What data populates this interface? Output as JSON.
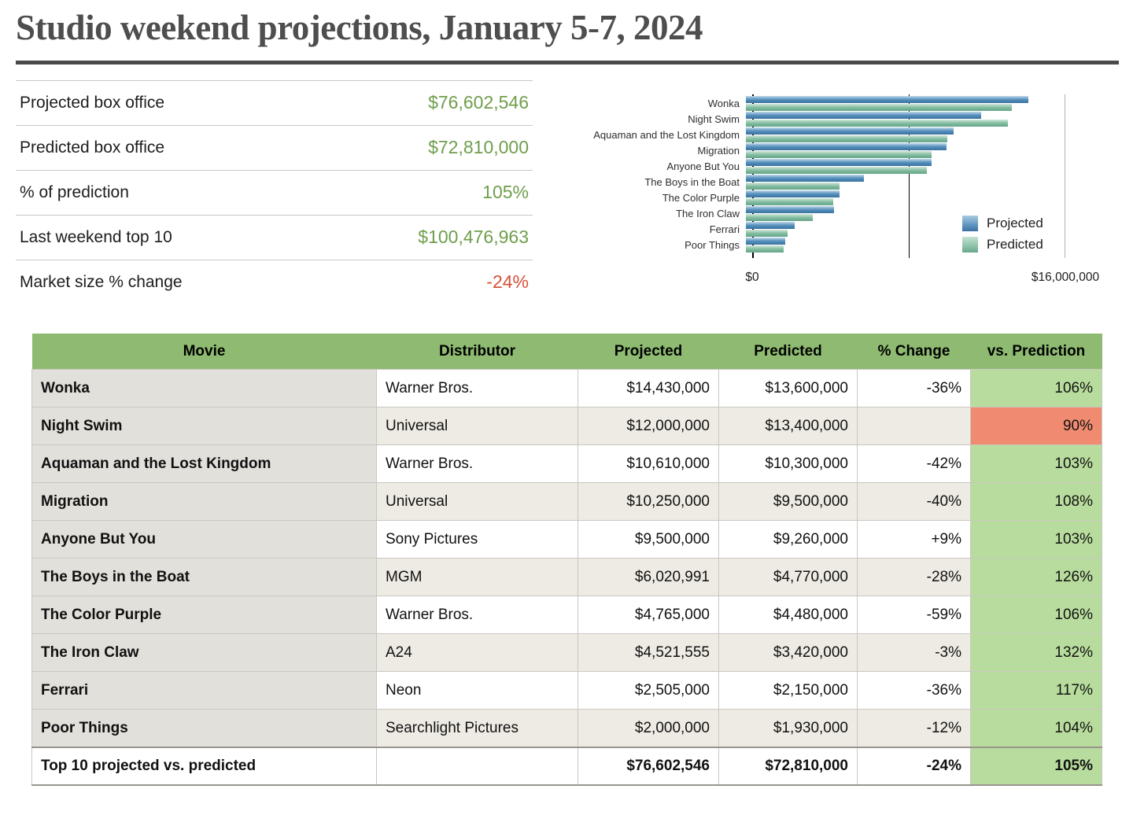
{
  "title": "Studio weekend projections, January 5-7, 2024",
  "summary": {
    "rows": [
      {
        "label": "Projected box office",
        "value": "$76,602,546",
        "color": "green"
      },
      {
        "label": "Predicted box office",
        "value": "$72,810,000",
        "color": "green"
      },
      {
        "label": "% of prediction",
        "value": "105%",
        "color": "green"
      },
      {
        "label": "Last weekend top 10",
        "value": "$100,476,963",
        "color": "green"
      },
      {
        "label": "Market size % change",
        "value": "-24%",
        "color": "red"
      }
    ],
    "green_hex": "#6f9e4b",
    "red_hex": "#d65038"
  },
  "chart_data": {
    "type": "bar",
    "orientation": "horizontal",
    "title": "",
    "xlabel": "",
    "ylabel": "",
    "categories": [
      "Wonka",
      "Night Swim",
      "Aquaman and the Lost Kingdom",
      "Migration",
      "Anyone But You",
      "The Boys in the Boat",
      "The Color Purple",
      "The Iron Claw",
      "Ferrari",
      "Poor Things"
    ],
    "series": [
      {
        "name": "Projected",
        "color": "#4e88b6",
        "values": [
          14430000,
          12000000,
          10610000,
          10250000,
          9500000,
          6020991,
          4765000,
          4521555,
          2505000,
          2000000
        ]
      },
      {
        "name": "Predicted",
        "color": "#82bda1",
        "values": [
          13600000,
          13400000,
          10300000,
          9500000,
          9260000,
          4770000,
          4480000,
          3420000,
          2150000,
          1930000
        ]
      }
    ],
    "xlim": [
      0,
      16000000
    ],
    "x_ticks": [
      "$0",
      "$16,000,000"
    ],
    "gridlines_at": [
      8000000,
      16000000
    ],
    "grid": true,
    "legend_position": "right"
  },
  "table": {
    "headers": [
      "Movie",
      "Distributor",
      "Projected",
      "Predicted",
      "% Change",
      "vs. Prediction"
    ],
    "rows": [
      {
        "movie": "Wonka",
        "distributor": "Warner Bros.",
        "projected": "$14,430,000",
        "predicted": "$13,600,000",
        "change": "-36%",
        "vs": "106%",
        "vs_status": "above"
      },
      {
        "movie": "Night Swim",
        "distributor": "Universal",
        "projected": "$12,000,000",
        "predicted": "$13,400,000",
        "change": "",
        "vs": "90%",
        "vs_status": "below"
      },
      {
        "movie": "Aquaman and the Lost Kingdom",
        "distributor": "Warner Bros.",
        "projected": "$10,610,000",
        "predicted": "$10,300,000",
        "change": "-42%",
        "vs": "103%",
        "vs_status": "above"
      },
      {
        "movie": "Migration",
        "distributor": "Universal",
        "projected": "$10,250,000",
        "predicted": "$9,500,000",
        "change": "-40%",
        "vs": "108%",
        "vs_status": "above"
      },
      {
        "movie": "Anyone But You",
        "distributor": "Sony Pictures",
        "projected": "$9,500,000",
        "predicted": "$9,260,000",
        "change": "+9%",
        "vs": "103%",
        "vs_status": "above"
      },
      {
        "movie": "The Boys in the Boat",
        "distributor": "MGM",
        "projected": "$6,020,991",
        "predicted": "$4,770,000",
        "change": "-28%",
        "vs": "126%",
        "vs_status": "above"
      },
      {
        "movie": "The Color Purple",
        "distributor": "Warner Bros.",
        "projected": "$4,765,000",
        "predicted": "$4,480,000",
        "change": "-59%",
        "vs": "106%",
        "vs_status": "above"
      },
      {
        "movie": "The Iron Claw",
        "distributor": "A24",
        "projected": "$4,521,555",
        "predicted": "$3,420,000",
        "change": "-3%",
        "vs": "132%",
        "vs_status": "above"
      },
      {
        "movie": "Ferrari",
        "distributor": "Neon",
        "projected": "$2,505,000",
        "predicted": "$2,150,000",
        "change": "-36%",
        "vs": "117%",
        "vs_status": "above"
      },
      {
        "movie": "Poor Things",
        "distributor": "Searchlight Pictures",
        "projected": "$2,000,000",
        "predicted": "$1,930,000",
        "change": "-12%",
        "vs": "104%",
        "vs_status": "above"
      }
    ],
    "total": {
      "movie": "Top 10 projected vs. predicted",
      "distributor": "",
      "projected": "$76,602,546",
      "predicted": "$72,810,000",
      "change": "-24%",
      "vs": "105%",
      "vs_status": "above"
    }
  },
  "colors": {
    "header_green": "#8ebb71",
    "cell_green": "#b8dc9d",
    "cell_red": "#f08a71",
    "zebra_beige": "#edebe3",
    "movie_col_gray": "#e2e0da",
    "bar_projected": "#4e88b6",
    "bar_predicted": "#82bda1"
  }
}
